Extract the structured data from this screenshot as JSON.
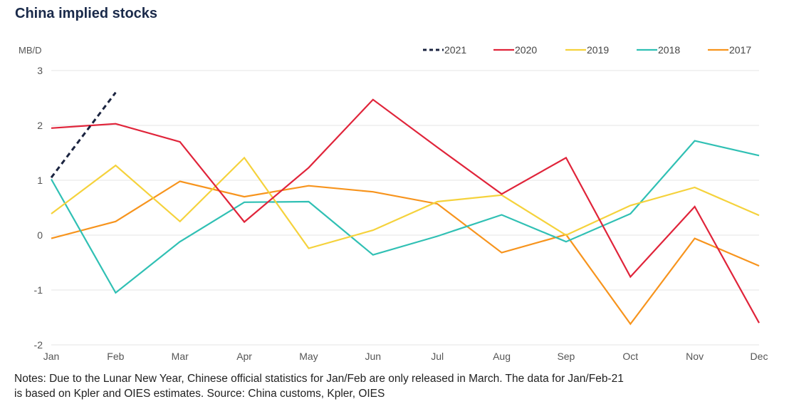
{
  "notes": [
    "Notes: Due to the Lunar New Year, Chinese official statistics for Jan/Feb are only released in March. The data for Jan/Feb-21",
    "is based on Kpler and OIES estimates. Source: China customs, Kpler, OIES"
  ],
  "chart_data": {
    "type": "line",
    "title": "China implied stocks",
    "ylabel": "MB/D",
    "xlabel": "",
    "ylim": [
      -2,
      3
    ],
    "yticks": [
      "3",
      "2",
      "1",
      "0",
      "-1",
      "-2"
    ],
    "ytick_values": [
      3,
      2,
      1,
      0,
      -1,
      -2
    ],
    "categories": [
      "Jan",
      "Feb",
      "Mar",
      "Apr",
      "May",
      "Jun",
      "Jul",
      "Aug",
      "Sep",
      "Oct",
      "Nov",
      "Dec"
    ],
    "grid": true,
    "legend_position": "top-right",
    "series": [
      {
        "name": "2021",
        "color": "#1b2440",
        "dashed": true,
        "values": [
          1.05,
          2.6,
          null,
          null,
          null,
          null,
          null,
          null,
          null,
          null,
          null,
          null
        ]
      },
      {
        "name": "2020",
        "color": "#e0243a",
        "dashed": false,
        "values": [
          1.95,
          2.03,
          1.7,
          0.24,
          1.23,
          2.47,
          1.6,
          0.75,
          1.41,
          -0.76,
          0.52,
          -1.6
        ]
      },
      {
        "name": "2019",
        "color": "#f5d23c",
        "dashed": false,
        "values": [
          0.39,
          1.27,
          0.25,
          1.41,
          -0.24,
          0.09,
          0.61,
          0.73,
          0.0,
          0.54,
          0.87,
          0.36
        ]
      },
      {
        "name": "2018",
        "color": "#30c0b4",
        "dashed": false,
        "values": [
          1.02,
          -1.05,
          -0.12,
          0.6,
          0.61,
          -0.36,
          -0.02,
          0.37,
          -0.12,
          0.39,
          1.72,
          1.45
        ]
      },
      {
        "name": "2017",
        "color": "#f7941d",
        "dashed": false,
        "values": [
          -0.06,
          0.25,
          0.98,
          0.7,
          0.9,
          0.79,
          0.57,
          -0.32,
          0.01,
          -1.62,
          -0.06,
          -0.56
        ]
      }
    ]
  }
}
